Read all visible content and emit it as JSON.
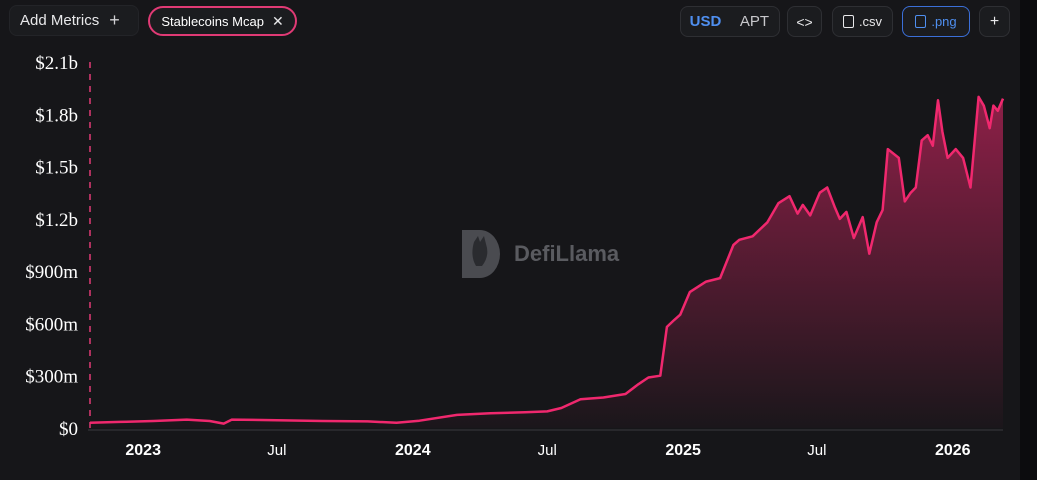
{
  "toolbar": {
    "add_metrics_label": "Add Metrics",
    "add_icon": "plus-icon",
    "metric_chip_label": "Stablecoins Mcap",
    "metric_chip_close_icon": "close-icon",
    "currency_options": [
      "USD",
      "APT"
    ],
    "currency_selected": "USD",
    "embed_icon": "code-icon",
    "csv_label": ".csv",
    "png_label": ".png",
    "more_icon": "plus-icon"
  },
  "watermark": {
    "text": "DefiLlama"
  },
  "colors": {
    "line": "#f0286e",
    "accent": "#4f8ff0",
    "chip_border": "#e03a75",
    "background": "#161619"
  },
  "chart_data": {
    "type": "area",
    "title": "",
    "xlabel": "",
    "ylabel": "",
    "y_tick_labels": [
      "$0",
      "$300m",
      "$600m",
      "$900m",
      "$1.2b",
      "$1.5b",
      "$1.8b",
      "$2.1b"
    ],
    "y_ticks": [
      0,
      300,
      600,
      900,
      1200,
      1500,
      1800,
      2100
    ],
    "ylim": [
      0,
      2100
    ],
    "y_unit": "millions USD",
    "x_tick_labels": [
      "2023",
      "Jul",
      "2024",
      "Jul",
      "2025",
      "Jul",
      "2026"
    ],
    "x_ticks": [
      "2023-01-01",
      "2023-07-01",
      "2024-01-01",
      "2024-07-01",
      "2025-01-01",
      "2025-07-01",
      "2026-01-01"
    ],
    "xlim": [
      "2022-10-21",
      "2026-03-10"
    ],
    "grid": false,
    "series": [
      {
        "name": "Stablecoins Mcap",
        "x": [
          "2022-10-21",
          "2022-12-01",
          "2023-01-15",
          "2023-03-01",
          "2023-04-01",
          "2023-04-20",
          "2023-05-01",
          "2023-07-01",
          "2023-09-01",
          "2023-11-01",
          "2023-12-10",
          "2024-01-10",
          "2024-03-01",
          "2024-04-15",
          "2024-06-01",
          "2024-07-01",
          "2024-07-20",
          "2024-08-15",
          "2024-09-15",
          "2024-10-15",
          "2024-11-01",
          "2024-11-15",
          "2024-12-01",
          "2024-12-10",
          "2024-12-20",
          "2024-12-28",
          "2025-01-10",
          "2025-02-01",
          "2025-02-20",
          "2025-03-10",
          "2025-03-18",
          "2025-04-05",
          "2025-04-25",
          "2025-05-10",
          "2025-05-25",
          "2025-06-05",
          "2025-06-12",
          "2025-06-22",
          "2025-07-05",
          "2025-07-15",
          "2025-07-25",
          "2025-08-01",
          "2025-08-10",
          "2025-08-20",
          "2025-09-01",
          "2025-09-10",
          "2025-09-20",
          "2025-09-28",
          "2025-10-05",
          "2025-10-20",
          "2025-10-28",
          "2025-11-05",
          "2025-11-12",
          "2025-11-20",
          "2025-11-28",
          "2025-12-05",
          "2025-12-12",
          "2025-12-18",
          "2025-12-25",
          "2026-01-05",
          "2026-01-15",
          "2026-01-25",
          "2026-02-05",
          "2026-02-12",
          "2026-02-20",
          "2026-02-25",
          "2026-03-03",
          "2026-03-10"
        ],
        "y": [
          30,
          35,
          40,
          48,
          40,
          25,
          48,
          45,
          40,
          38,
          30,
          42,
          75,
          85,
          90,
          95,
          115,
          165,
          175,
          195,
          250,
          290,
          300,
          580,
          620,
          650,
          780,
          840,
          860,
          1050,
          1080,
          1100,
          1180,
          1290,
          1330,
          1230,
          1280,
          1220,
          1350,
          1380,
          1270,
          1200,
          1240,
          1090,
          1210,
          1000,
          1180,
          1250,
          1600,
          1550,
          1300,
          1350,
          1380,
          1650,
          1680,
          1620,
          1880,
          1700,
          1550,
          1600,
          1550,
          1380,
          1900,
          1850,
          1720,
          1850,
          1820,
          1890
        ]
      }
    ]
  }
}
